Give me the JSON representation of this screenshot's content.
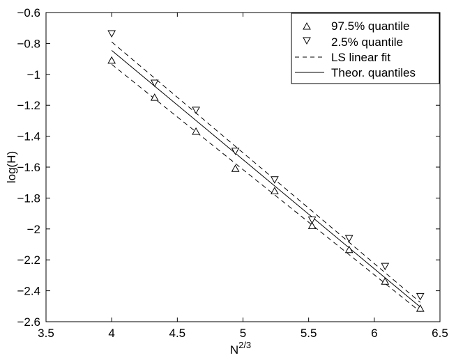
{
  "chart_data": {
    "type": "scatter",
    "xlabel_base": "N",
    "xlabel_exp": "2/3",
    "ylabel": "log(H)",
    "xlim": [
      3.5,
      6.5
    ],
    "ylim": [
      -2.6,
      -0.6
    ],
    "xticks": [
      3.5,
      4,
      4.5,
      5,
      5.5,
      6,
      6.5
    ],
    "yticks": [
      -0.6,
      -0.8,
      -1,
      -1.2,
      -1.4,
      -1.6,
      -1.8,
      -2,
      -2.2,
      -2.4,
      -2.6
    ],
    "xtick_labels": [
      "3.5",
      "4",
      "4.5",
      "5",
      "5.5",
      "6",
      "6.5"
    ],
    "ytick_labels": [
      "−0.6",
      "−0.8",
      "−1",
      "−1.2",
      "−1.4",
      "−1.6",
      "−1.8",
      "−2",
      "−2.2",
      "−2.4",
      "−2.6"
    ],
    "grid": false,
    "legend_position": "top-right",
    "series": [
      {
        "name": "97.5% quantile",
        "marker": "triangle-up",
        "x": [
          4.0,
          4.327,
          4.642,
          4.942,
          5.241,
          5.526,
          5.808,
          6.082,
          6.35
        ],
        "y": [
          -0.91,
          -1.15,
          -1.37,
          -1.61,
          -1.755,
          -1.98,
          -2.135,
          -2.34,
          -2.515
        ]
      },
      {
        "name": "2.5% quantile",
        "marker": "triangle-down",
        "x": [
          4.0,
          4.327,
          4.642,
          4.942,
          5.241,
          5.526,
          5.808,
          6.082,
          6.35
        ],
        "y": [
          -0.735,
          -1.055,
          -1.23,
          -1.495,
          -1.68,
          -1.94,
          -2.06,
          -2.24,
          -2.435
        ]
      },
      {
        "name": "LS linear fit",
        "style": "dashed",
        "lines": [
          {
            "x": [
              4.0,
              6.35
            ],
            "y": [
              -0.79,
              -2.475
            ]
          },
          {
            "x": [
              4.0,
              6.35
            ],
            "y": [
              -0.935,
              -2.535
            ]
          }
        ]
      },
      {
        "name": "Theor. quantiles",
        "style": "solid",
        "lines": [
          {
            "x": [
              4.0,
              6.35
            ],
            "y": [
              -0.845,
              -2.505
            ]
          }
        ]
      }
    ],
    "colors": {
      "ink": "#000000",
      "background": "#ffffff"
    }
  }
}
